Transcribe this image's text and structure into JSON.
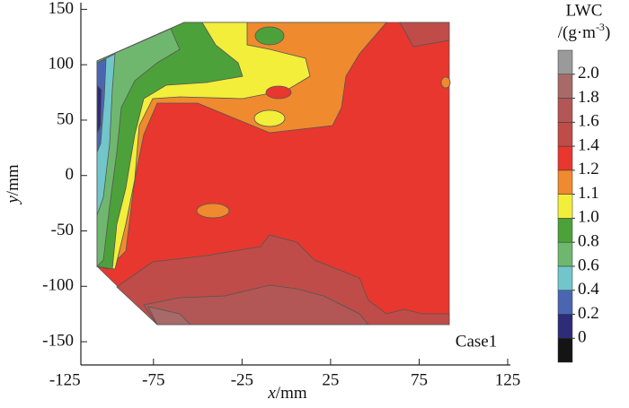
{
  "chart_data": {
    "type": "contour",
    "xlabel": {
      "var": "x",
      "unit": "/mm"
    },
    "ylabel": {
      "var": "y",
      "unit": "/mm"
    },
    "annotation": "Case1",
    "xlim": [
      -116,
      125
    ],
    "ylim": [
      -171,
      156
    ],
    "xticks": [
      -125,
      -75,
      -25,
      25,
      75,
      125
    ],
    "yticks": [
      -150,
      -100,
      -50,
      0,
      50,
      100,
      150
    ],
    "colorbar": {
      "title": "LWC",
      "unit": {
        "prefix": "/(g·m",
        "exponent": "-3",
        "suffix": ")"
      },
      "levels": [
        0,
        0.2,
        0.4,
        0.6,
        0.8,
        {
          "value": 1,
          "label": "1.0"
        },
        1.1,
        1.2,
        1.4,
        1.6,
        1.8,
        {
          "value": 2,
          "label": "2.0"
        }
      ],
      "colors": [
        "#141414",
        "#2e2c78",
        "#4a66b2",
        "#70c6cb",
        "#6fb76e",
        "#4da13a",
        "#f2ee3a",
        "#f08a2e",
        "#e8372e",
        "#bf4c48",
        "#b25755",
        "#a86a68",
        "#9a9a9a"
      ]
    }
  }
}
